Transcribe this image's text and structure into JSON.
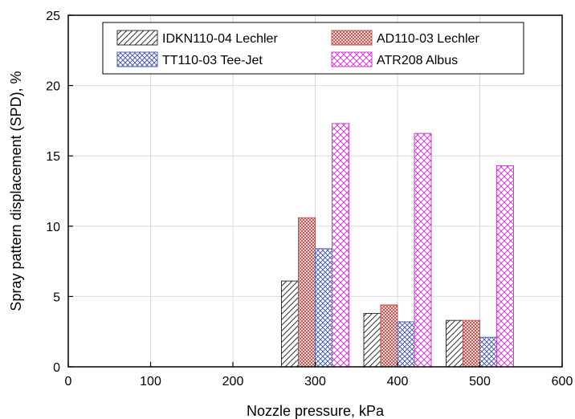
{
  "chart_data": {
    "type": "bar",
    "title": "",
    "xlabel": "Nozzle pressure, kPa",
    "ylabel": "Spray pattern displacement (SPD), %",
    "xlim": [
      0,
      600
    ],
    "ylim": [
      0,
      25
    ],
    "xticks": [
      "0",
      "100",
      "200",
      "300",
      "400",
      "500",
      "600"
    ],
    "yticks": [
      "0",
      "5",
      "10",
      "15",
      "20",
      "25"
    ],
    "x": [
      300,
      400,
      500
    ],
    "grid": true,
    "legend_position": "top",
    "series": [
      {
        "name": "IDKN110-04 Lechler",
        "values": [
          6.1,
          3.8,
          3.3
        ],
        "color": "#333333",
        "pattern": "diagonal"
      },
      {
        "name": "AD110-03 Lechler",
        "values": [
          10.6,
          4.4,
          3.3
        ],
        "color": "#c0504d",
        "pattern": "dense-crosshatch"
      },
      {
        "name": "TT110-03 Tee-Jet",
        "values": [
          8.4,
          3.2,
          2.1
        ],
        "color": "#4f5fb0",
        "pattern": "crosshatch"
      },
      {
        "name": "ATR208 Albus",
        "values": [
          17.3,
          16.6,
          14.3
        ],
        "color": "#d63ad6",
        "pattern": "crosshatch"
      }
    ]
  }
}
